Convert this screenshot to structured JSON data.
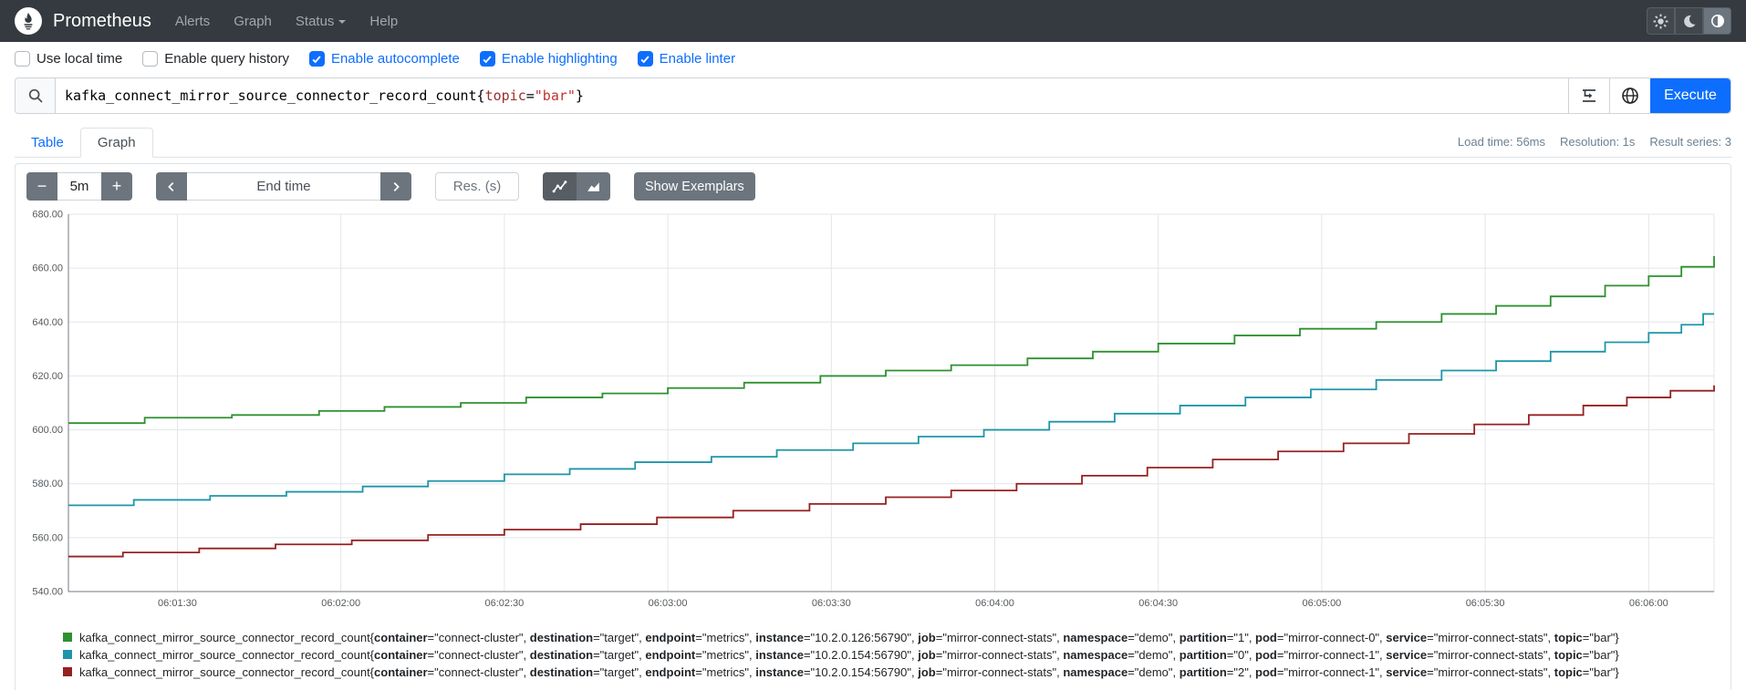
{
  "navbar": {
    "brand": "Prometheus",
    "items": [
      {
        "label": "Alerts",
        "caret": false
      },
      {
        "label": "Graph",
        "caret": false
      },
      {
        "label": "Status",
        "caret": true
      },
      {
        "label": "Help",
        "caret": false
      }
    ],
    "theme_buttons": [
      "light-theme",
      "dark-theme",
      "auto-theme"
    ],
    "active_theme": "auto-theme"
  },
  "options": [
    {
      "label": "Use local time",
      "checked": false
    },
    {
      "label": "Enable query history",
      "checked": false
    },
    {
      "label": "Enable autocomplete",
      "checked": true
    },
    {
      "label": "Enable highlighting",
      "checked": true
    },
    {
      "label": "Enable linter",
      "checked": true
    }
  ],
  "query": {
    "segments": [
      {
        "text": "kafka_connect_mirror_source_connector_record_count{",
        "type": "plain"
      },
      {
        "text": "topic",
        "type": "label"
      },
      {
        "text": "=",
        "type": "plain"
      },
      {
        "text": "\"bar\"",
        "type": "string"
      },
      {
        "text": "}",
        "type": "plain"
      }
    ],
    "execute_label": "Execute"
  },
  "tabs": {
    "table": "Table",
    "graph": "Graph"
  },
  "stats": [
    "Load time: 56ms",
    "Resolution: 1s",
    "Result series: 3"
  ],
  "controls": {
    "minus": "−",
    "range_value": "5m",
    "plus": "+",
    "end_time_placeholder": "End time",
    "res_placeholder": "Res. (s)",
    "show_exemplars": "Show Exemplars"
  },
  "colors": {
    "accent_blue": "#0d6efd",
    "navbar_bg": "#343a40",
    "grid": "#e2e6ea",
    "axis": "#73797f",
    "tick_text": "#55595d"
  },
  "chart_data": {
    "type": "line",
    "step": true,
    "x_range_seconds": [
      0,
      302
    ],
    "x_start_time": "06:01:10",
    "x_ticks": [
      {
        "t": 20,
        "label": "06:01:30"
      },
      {
        "t": 50,
        "label": "06:02:00"
      },
      {
        "t": 80,
        "label": "06:02:30"
      },
      {
        "t": 110,
        "label": "06:03:00"
      },
      {
        "t": 140,
        "label": "06:03:30"
      },
      {
        "t": 170,
        "label": "06:04:00"
      },
      {
        "t": 200,
        "label": "06:04:30"
      },
      {
        "t": 230,
        "label": "06:05:00"
      },
      {
        "t": 260,
        "label": "06:05:30"
      },
      {
        "t": 290,
        "label": "06:06:00"
      }
    ],
    "ylim": [
      540,
      680
    ],
    "y_ticks": [
      "680.00",
      "660.00",
      "640.00",
      "620.00",
      "600.00",
      "580.00",
      "560.00",
      "540.00"
    ],
    "series": [
      {
        "color": "#2e9130",
        "metric": "kafka_connect_mirror_source_connector_record_count",
        "labels": {
          "container": "connect-cluster",
          "destination": "target",
          "endpoint": "metrics",
          "instance": "10.2.0.126:56790",
          "job": "mirror-connect-stats",
          "namespace": "demo",
          "partition": "1",
          "pod": "mirror-connect-0",
          "service": "mirror-connect-stats",
          "topic": "bar"
        },
        "points": [
          [
            0,
            602.5
          ],
          [
            14,
            604.5
          ],
          [
            30,
            605.5
          ],
          [
            46,
            607
          ],
          [
            58,
            608.5
          ],
          [
            72,
            610
          ],
          [
            84,
            612
          ],
          [
            98,
            613.5
          ],
          [
            110,
            615.5
          ],
          [
            124,
            617.5
          ],
          [
            138,
            620
          ],
          [
            150,
            622
          ],
          [
            162,
            624
          ],
          [
            176,
            626.5
          ],
          [
            188,
            629
          ],
          [
            200,
            632
          ],
          [
            214,
            635
          ],
          [
            226,
            637.5
          ],
          [
            240,
            640
          ],
          [
            252,
            643
          ],
          [
            262,
            646
          ],
          [
            272,
            649.5
          ],
          [
            282,
            653.5
          ],
          [
            290,
            657
          ],
          [
            296,
            660.5
          ],
          [
            302,
            664.5
          ]
        ]
      },
      {
        "color": "#1e96a8",
        "metric": "kafka_connect_mirror_source_connector_record_count",
        "labels": {
          "container": "connect-cluster",
          "destination": "target",
          "endpoint": "metrics",
          "instance": "10.2.0.154:56790",
          "job": "mirror-connect-stats",
          "namespace": "demo",
          "partition": "0",
          "pod": "mirror-connect-1",
          "service": "mirror-connect-stats",
          "topic": "bar"
        },
        "points": [
          [
            0,
            572
          ],
          [
            12,
            574
          ],
          [
            26,
            575.5
          ],
          [
            40,
            577
          ],
          [
            54,
            579
          ],
          [
            66,
            581
          ],
          [
            80,
            583.5
          ],
          [
            92,
            585.5
          ],
          [
            104,
            588
          ],
          [
            118,
            590
          ],
          [
            130,
            592.5
          ],
          [
            144,
            595
          ],
          [
            156,
            597.5
          ],
          [
            168,
            600
          ],
          [
            180,
            603
          ],
          [
            192,
            606
          ],
          [
            204,
            609
          ],
          [
            216,
            612
          ],
          [
            228,
            615
          ],
          [
            240,
            618.5
          ],
          [
            252,
            622
          ],
          [
            262,
            625.5
          ],
          [
            272,
            629
          ],
          [
            282,
            632.5
          ],
          [
            290,
            636
          ],
          [
            296,
            639
          ],
          [
            300,
            643
          ],
          [
            302,
            643
          ]
        ]
      },
      {
        "color": "#962121",
        "metric": "kafka_connect_mirror_source_connector_record_count",
        "labels": {
          "container": "connect-cluster",
          "destination": "target",
          "endpoint": "metrics",
          "instance": "10.2.0.154:56790",
          "job": "mirror-connect-stats",
          "namespace": "demo",
          "partition": "2",
          "pod": "mirror-connect-1",
          "service": "mirror-connect-stats",
          "topic": "bar"
        },
        "points": [
          [
            0,
            553
          ],
          [
            10,
            554.5
          ],
          [
            24,
            556
          ],
          [
            38,
            557.5
          ],
          [
            52,
            559
          ],
          [
            66,
            561
          ],
          [
            80,
            563
          ],
          [
            94,
            565
          ],
          [
            108,
            567.5
          ],
          [
            122,
            570
          ],
          [
            136,
            572.5
          ],
          [
            150,
            575
          ],
          [
            162,
            577.5
          ],
          [
            174,
            580
          ],
          [
            186,
            583
          ],
          [
            198,
            586
          ],
          [
            210,
            589
          ],
          [
            222,
            592
          ],
          [
            234,
            595
          ],
          [
            246,
            598.5
          ],
          [
            258,
            602
          ],
          [
            268,
            605.5
          ],
          [
            278,
            609
          ],
          [
            286,
            612
          ],
          [
            294,
            614.5
          ],
          [
            302,
            616.5
          ]
        ]
      }
    ]
  }
}
